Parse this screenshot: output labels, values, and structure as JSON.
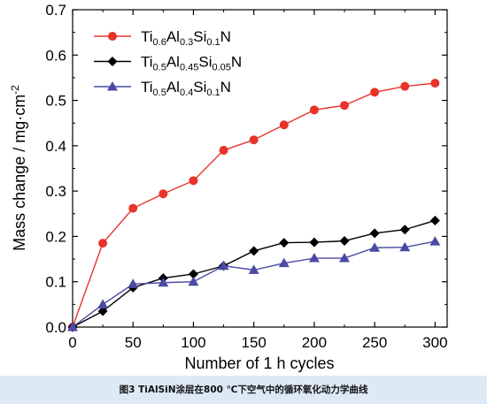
{
  "chart_data": {
    "type": "line",
    "xlabel": "Number of 1 h cycles",
    "ylabel": "Mass change / mg·cm",
    "ylabel_sup": "-2",
    "xlim": [
      0,
      310
    ],
    "ylim": [
      0,
      0.7
    ],
    "xticks": [
      "0",
      "50",
      "100",
      "150",
      "200",
      "250",
      "300"
    ],
    "yticks": [
      "0.0",
      "0.1",
      "0.2",
      "0.3",
      "0.4",
      "0.5",
      "0.6",
      "0.7"
    ],
    "grid": false,
    "legend_position": "top-left",
    "series": [
      {
        "name": "Ti0.6Al0.3Si0.1N",
        "name_parts": [
          [
            "Ti",
            "n"
          ],
          [
            "0.6",
            "s"
          ],
          [
            "Al",
            "n"
          ],
          [
            "0.3",
            "s"
          ],
          [
            "Si",
            "n"
          ],
          [
            "0.1",
            "s"
          ],
          [
            "N",
            "n"
          ]
        ],
        "color": "#e8332a",
        "marker": "circle",
        "x": [
          0,
          25,
          50,
          75,
          100,
          125,
          150,
          175,
          200,
          225,
          250,
          275,
          300
        ],
        "y": [
          0.0,
          0.185,
          0.262,
          0.294,
          0.323,
          0.39,
          0.413,
          0.446,
          0.479,
          0.489,
          0.518,
          0.531,
          0.538
        ]
      },
      {
        "name": "Ti0.5Al0.45Si0.05N",
        "name_parts": [
          [
            "Ti",
            "n"
          ],
          [
            "0.5",
            "s"
          ],
          [
            "Al",
            "n"
          ],
          [
            "0.45",
            "s"
          ],
          [
            "Si",
            "n"
          ],
          [
            "0.05",
            "s"
          ],
          [
            "N",
            "n"
          ]
        ],
        "color": "#000000",
        "marker": "diamond",
        "x": [
          0,
          25,
          50,
          75,
          100,
          125,
          150,
          175,
          200,
          225,
          250,
          275,
          300
        ],
        "y": [
          0.0,
          0.035,
          0.087,
          0.108,
          0.117,
          0.135,
          0.168,
          0.186,
          0.187,
          0.19,
          0.207,
          0.215,
          0.235
        ]
      },
      {
        "name": "Ti0.5Al0.4Si0.1N",
        "name_parts": [
          [
            "Ti",
            "n"
          ],
          [
            "0.5",
            "s"
          ],
          [
            "Al",
            "n"
          ],
          [
            "0.4",
            "s"
          ],
          [
            "Si",
            "n"
          ],
          [
            "0.1",
            "s"
          ],
          [
            "N",
            "n"
          ]
        ],
        "color": "#4a4aa5",
        "marker": "triangle",
        "x": [
          0,
          25,
          50,
          75,
          100,
          125,
          150,
          175,
          200,
          225,
          250,
          275,
          300
        ],
        "y": [
          0.0,
          0.05,
          0.095,
          0.098,
          0.1,
          0.135,
          0.126,
          0.141,
          0.152,
          0.152,
          0.175,
          0.176,
          0.189
        ]
      }
    ]
  },
  "caption": "图3   TiAlSiN涂层在800 ℃下空气中的循环氧化动力学曲线"
}
